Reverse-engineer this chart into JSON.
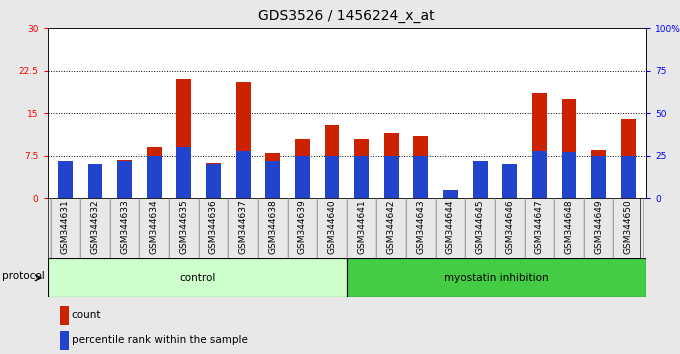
{
  "title": "GDS3526 / 1456224_x_at",
  "samples": [
    "GSM344631",
    "GSM344632",
    "GSM344633",
    "GSM344634",
    "GSM344635",
    "GSM344636",
    "GSM344637",
    "GSM344638",
    "GSM344639",
    "GSM344640",
    "GSM344641",
    "GSM344642",
    "GSM344643",
    "GSM344644",
    "GSM344645",
    "GSM344646",
    "GSM344647",
    "GSM344648",
    "GSM344649",
    "GSM344650"
  ],
  "count_values": [
    6.5,
    6.0,
    6.8,
    9.0,
    21.0,
    6.2,
    20.5,
    8.0,
    10.5,
    13.0,
    10.5,
    11.5,
    11.0,
    0.0,
    6.5,
    6.0,
    18.5,
    17.5,
    8.5,
    14.0
  ],
  "percentile_values": [
    22.0,
    20.0,
    22.0,
    25.0,
    30.0,
    20.0,
    28.0,
    22.0,
    25.0,
    25.0,
    25.0,
    25.0,
    25.0,
    5.0,
    22.0,
    20.0,
    28.0,
    27.0,
    25.0,
    25.0
  ],
  "control_label": "control",
  "inhibition_label": "myostatin inhibition",
  "protocol_label": "protocol",
  "legend_count": "count",
  "legend_percentile": "percentile rank within the sample",
  "ylim_left": [
    0,
    30
  ],
  "ylim_right": [
    0,
    100
  ],
  "yticks_left": [
    0,
    7.5,
    15,
    22.5,
    30
  ],
  "yticks_right": [
    0,
    25,
    50,
    75,
    100
  ],
  "bar_color_red": "#cc2200",
  "bar_color_blue": "#2244cc",
  "control_bg": "#ccffcc",
  "inhibition_bg": "#44cc44",
  "fig_bg": "#e8e8e8",
  "title_fontsize": 10,
  "tick_fontsize": 6.5,
  "label_fontsize": 7.5,
  "n_control": 10,
  "n_total": 20
}
